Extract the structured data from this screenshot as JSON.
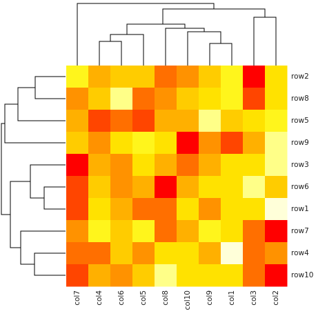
{
  "chart_data": {
    "type": "heatmap",
    "title": "",
    "xlabel": "",
    "ylabel": "",
    "columns": [
      "col7",
      "col4",
      "col6",
      "col5",
      "col8",
      "col10",
      "col9",
      "col1",
      "col3",
      "col2"
    ],
    "rows": [
      "row2",
      "row8",
      "row5",
      "row9",
      "row3",
      "row6",
      "row1",
      "row7",
      "row4",
      "row10"
    ],
    "palette": [
      "#ff0000",
      "#ff4500",
      "#ff6f00",
      "#ff9200",
      "#ffb000",
      "#ffcc00",
      "#ffe200",
      "#fff51c",
      "#ffff88",
      "#ffffd9"
    ],
    "values": [
      [
        7,
        4,
        5,
        5,
        2,
        3,
        5,
        7,
        0,
        6
      ],
      [
        3,
        5,
        8,
        2,
        3,
        5,
        6,
        7,
        1,
        6
      ],
      [
        4,
        1,
        2,
        1,
        4,
        4,
        8,
        5,
        6,
        7
      ],
      [
        5,
        3,
        6,
        7,
        6,
        0,
        3,
        1,
        4,
        8
      ],
      [
        0,
        4,
        3,
        6,
        4,
        2,
        4,
        6,
        6,
        8
      ],
      [
        1,
        5,
        3,
        4,
        0,
        4,
        6,
        6,
        8,
        5
      ],
      [
        1,
        6,
        4,
        2,
        2,
        6,
        3,
        6,
        6,
        9
      ],
      [
        3,
        7,
        5,
        7,
        2,
        4,
        7,
        6,
        2,
        0
      ],
      [
        2,
        2,
        5,
        3,
        6,
        6,
        4,
        9,
        2,
        3
      ],
      [
        1,
        4,
        3,
        5,
        8,
        6,
        6,
        6,
        2,
        0
      ]
    ],
    "legend": "none",
    "grid": false,
    "row_dendrogram": true,
    "column_dendrogram": true
  }
}
